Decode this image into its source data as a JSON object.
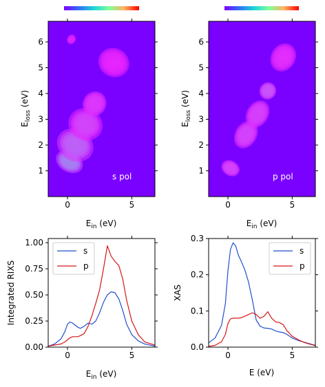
{
  "colors": {
    "s": "#1f4fcc",
    "p": "#d41616",
    "map_bg": "#7a00ff",
    "colormap": "rainbow"
  },
  "chart_data": [
    {
      "id": "map_s",
      "type": "heatmap",
      "xlabel_main": "E",
      "xlabel_sub": "in",
      "xlabel_unit": " (eV)",
      "ylabel_main": "E",
      "ylabel_sub": "loss",
      "ylabel_unit": " (eV)",
      "xlim": [
        -1.5,
        6.8
      ],
      "ylim": [
        0,
        6.8
      ],
      "xticks": [
        0,
        5
      ],
      "yticks": [
        1,
        2,
        3,
        4,
        5,
        6
      ],
      "annotation": "s pol",
      "blobs": [
        {
          "x": 0.15,
          "y": 1.35,
          "sx": 0.35,
          "sy": 0.45,
          "a": 1.0,
          "rot": 0.9
        },
        {
          "x": 0.6,
          "y": 2.0,
          "sx": 0.55,
          "sy": 0.6,
          "a": 0.7,
          "rot": 0.9
        },
        {
          "x": 1.4,
          "y": 2.8,
          "sx": 0.55,
          "sy": 0.55,
          "a": 0.48,
          "rot": 0.9
        },
        {
          "x": 2.1,
          "y": 3.6,
          "sx": 0.6,
          "sy": 0.5,
          "a": 0.18,
          "rot": 0.9
        },
        {
          "x": 3.6,
          "y": 5.2,
          "sx": 0.9,
          "sy": 0.9,
          "a": 0.08,
          "rot": 0.9
        },
        {
          "x": 0.3,
          "y": 6.1,
          "sx": 0.4,
          "sy": 0.3,
          "a": 0.06,
          "rot": 0.9
        }
      ]
    },
    {
      "id": "map_p",
      "type": "heatmap",
      "xlabel_main": "E",
      "xlabel_sub": "in",
      "xlabel_unit": " (eV)",
      "ylabel_main": "E",
      "ylabel_sub": "loss",
      "ylabel_unit": " (eV)",
      "xlim": [
        -1.5,
        6.8
      ],
      "ylim": [
        0,
        6.8
      ],
      "xticks": [
        0,
        5
      ],
      "yticks": [
        1,
        2,
        3,
        4,
        5,
        6
      ],
      "annotation": "p pol",
      "blobs": [
        {
          "x": 0.2,
          "y": 1.1,
          "sx": 0.3,
          "sy": 0.35,
          "a": 0.3,
          "rot": 0.85
        },
        {
          "x": 1.4,
          "y": 2.4,
          "sx": 0.6,
          "sy": 0.4,
          "a": 0.3,
          "rot": 0.85
        },
        {
          "x": 2.3,
          "y": 3.2,
          "sx": 0.6,
          "sy": 0.4,
          "a": 0.28,
          "rot": 0.85
        },
        {
          "x": 3.1,
          "y": 4.1,
          "sx": 0.35,
          "sy": 0.3,
          "a": 0.38,
          "rot": 0.85
        },
        {
          "x": 4.3,
          "y": 5.4,
          "sx": 0.8,
          "sy": 0.6,
          "a": 0.12,
          "rot": 0.85
        }
      ]
    },
    {
      "id": "rixs",
      "type": "line",
      "xlabel_main": "E",
      "xlabel_sub": "in",
      "xlabel_unit": " (eV)",
      "ylabel": "Integrated RIXS",
      "xlim": [
        -1.5,
        6.8
      ],
      "ylim": [
        0,
        1.04
      ],
      "xticks": [
        0,
        5
      ],
      "yticks": [
        0.0,
        0.25,
        0.5,
        0.75,
        1.0
      ],
      "ytick_labels": [
        "0.00",
        "0.25",
        "0.50",
        "0.75",
        "1.00"
      ],
      "legend_position": "upper-left",
      "x": [
        -1.5,
        -1.0,
        -0.5,
        -0.2,
        0.0,
        0.2,
        0.4,
        0.6,
        0.8,
        1.0,
        1.3,
        1.6,
        1.9,
        2.2,
        2.5,
        2.8,
        3.1,
        3.4,
        3.7,
        4.0,
        4.3,
        4.6,
        5.0,
        5.5,
        6.0,
        6.8
      ],
      "series": [
        {
          "name": "s",
          "color_key": "s",
          "values": [
            0.01,
            0.03,
            0.08,
            0.15,
            0.22,
            0.24,
            0.23,
            0.21,
            0.19,
            0.18,
            0.2,
            0.23,
            0.22,
            0.25,
            0.33,
            0.43,
            0.5,
            0.53,
            0.52,
            0.46,
            0.35,
            0.22,
            0.12,
            0.06,
            0.03,
            0.01
          ]
        },
        {
          "name": "p",
          "color_key": "p",
          "values": [
            0.01,
            0.02,
            0.03,
            0.05,
            0.07,
            0.09,
            0.1,
            0.1,
            0.1,
            0.11,
            0.13,
            0.2,
            0.3,
            0.42,
            0.55,
            0.75,
            0.97,
            0.87,
            0.82,
            0.78,
            0.65,
            0.45,
            0.25,
            0.12,
            0.05,
            0.02
          ]
        }
      ]
    },
    {
      "id": "xas",
      "type": "line",
      "xlabel": "E (eV)",
      "ylabel": "XAS",
      "xlim": [
        -1.5,
        6.8
      ],
      "ylim": [
        0,
        0.3
      ],
      "xticks": [
        0,
        5
      ],
      "yticks": [
        0.0,
        0.1,
        0.2,
        0.3
      ],
      "ytick_labels": [
        "0.0",
        "0.1",
        "0.2",
        "0.3"
      ],
      "legend_position": "upper-right",
      "x": [
        -1.5,
        -1.0,
        -0.5,
        -0.2,
        0.0,
        0.2,
        0.4,
        0.6,
        0.8,
        1.0,
        1.3,
        1.6,
        1.9,
        2.2,
        2.5,
        2.8,
        3.1,
        3.4,
        3.7,
        4.0,
        4.3,
        4.6,
        5.0,
        5.5,
        6.0,
        6.8
      ],
      "series": [
        {
          "name": "s",
          "color_key": "s",
          "values": [
            0.012,
            0.025,
            0.06,
            0.12,
            0.21,
            0.27,
            0.288,
            0.28,
            0.255,
            0.24,
            0.215,
            0.18,
            0.13,
            0.075,
            0.058,
            0.053,
            0.052,
            0.05,
            0.045,
            0.042,
            0.04,
            0.035,
            0.025,
            0.018,
            0.013,
            0.005
          ]
        },
        {
          "name": "p",
          "color_key": "p",
          "values": [
            0.002,
            0.005,
            0.015,
            0.035,
            0.065,
            0.078,
            0.08,
            0.08,
            0.08,
            0.081,
            0.085,
            0.09,
            0.095,
            0.09,
            0.08,
            0.085,
            0.098,
            0.08,
            0.07,
            0.068,
            0.062,
            0.045,
            0.03,
            0.02,
            0.012,
            0.004
          ]
        }
      ]
    }
  ]
}
